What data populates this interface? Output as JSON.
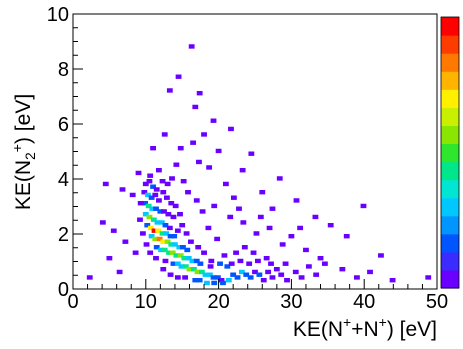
{
  "chart_data": {
    "type": "heatmap",
    "xlabel_parts": {
      "base": "KE(N",
      "sup1": "+",
      "mid": "+N",
      "sup2": "+",
      "end": ") [eV]"
    },
    "ylabel_parts": {
      "base": "KE(N",
      "sub": "2",
      "sup": "+",
      "end": ") [eV]"
    },
    "xlim": [
      0,
      50
    ],
    "ylim": [
      0,
      10
    ],
    "x_ticks": [
      0,
      10,
      20,
      30,
      40,
      50
    ],
    "y_ticks": [
      0,
      2,
      4,
      6,
      8,
      10
    ],
    "bin_size": {
      "x": 0.5,
      "y": 0.1
    },
    "colorbar": [
      "#6a00ff",
      "#3b2bff",
      "#0055ff",
      "#0095ff",
      "#00c8ff",
      "#00e6d2",
      "#00e68a",
      "#2ee62e",
      "#8ae600",
      "#c8f000",
      "#fff000",
      "#ffb400",
      "#ff7800",
      "#ff3c00",
      "#ff0000"
    ],
    "bins": [
      [
        15.9,
        8.8,
        1
      ],
      [
        14.1,
        7.7,
        1
      ],
      [
        12.9,
        7.2,
        1
      ],
      [
        17.0,
        7.1,
        1
      ],
      [
        16.4,
        6.6,
        1
      ],
      [
        18.9,
        6.1,
        1
      ],
      [
        21.3,
        5.8,
        1
      ],
      [
        12.2,
        5.6,
        1
      ],
      [
        17.6,
        5.6,
        1
      ],
      [
        16.1,
        5.3,
        1
      ],
      [
        14.4,
        5.1,
        1
      ],
      [
        10.6,
        5.1,
        1
      ],
      [
        19.6,
        5.0,
        1
      ],
      [
        24.1,
        4.9,
        1
      ],
      [
        16.9,
        4.6,
        1
      ],
      [
        13.8,
        4.5,
        1
      ],
      [
        18.3,
        4.4,
        1
      ],
      [
        11.4,
        4.3,
        1
      ],
      [
        22.9,
        4.3,
        1
      ],
      [
        8.6,
        4.2,
        1
      ],
      [
        28.0,
        4.0,
        1
      ],
      [
        4.1,
        3.8,
        1
      ],
      [
        6.4,
        3.6,
        1
      ],
      [
        7.8,
        3.4,
        1
      ],
      [
        25.6,
        3.5,
        1
      ],
      [
        21.7,
        3.3,
        1
      ],
      [
        30.3,
        3.2,
        1
      ],
      [
        39.5,
        3.0,
        1
      ],
      [
        27.0,
        2.9,
        1
      ],
      [
        32.9,
        2.6,
        1
      ],
      [
        35.0,
        2.3,
        1
      ],
      [
        30.8,
        2.2,
        1
      ],
      [
        37.2,
        1.9,
        1
      ],
      [
        3.7,
        2.4,
        1
      ],
      [
        5.2,
        2.1,
        1
      ],
      [
        6.8,
        1.7,
        1
      ],
      [
        1.9,
        0.4,
        1
      ],
      [
        4.6,
        1.1,
        1
      ],
      [
        6.0,
        0.6,
        1
      ],
      [
        8.2,
        1.3,
        1
      ],
      [
        41.9,
        1.2,
        1
      ],
      [
        40.4,
        0.6,
        1
      ],
      [
        43.5,
        0.3,
        1
      ],
      [
        38.6,
        0.4,
        1
      ],
      [
        34.2,
        0.9,
        1
      ],
      [
        36.6,
        0.7,
        1
      ],
      [
        31.6,
        1.4,
        1
      ],
      [
        33.6,
        1.1,
        1
      ],
      [
        48.4,
        0.4,
        1
      ],
      [
        9.6,
        3.8,
        1
      ],
      [
        10.1,
        3.9,
        1
      ],
      [
        10.6,
        3.7,
        2
      ],
      [
        11.1,
        3.6,
        1
      ],
      [
        9.4,
        3.5,
        1
      ],
      [
        9.9,
        3.4,
        3
      ],
      [
        10.4,
        3.3,
        2
      ],
      [
        10.9,
        3.4,
        1
      ],
      [
        11.4,
        3.2,
        1
      ],
      [
        12.0,
        3.5,
        1
      ],
      [
        12.5,
        3.3,
        1
      ],
      [
        13.1,
        3.1,
        1
      ],
      [
        9.5,
        3.1,
        2
      ],
      [
        10.0,
        3.0,
        4
      ],
      [
        10.5,
        2.9,
        3
      ],
      [
        11.0,
        2.9,
        2
      ],
      [
        11.6,
        2.8,
        2
      ],
      [
        12.1,
        2.8,
        1
      ],
      [
        12.7,
        2.7,
        1
      ],
      [
        9.6,
        2.7,
        3
      ],
      [
        10.1,
        2.6,
        5
      ],
      [
        10.7,
        2.5,
        4
      ],
      [
        11.2,
        2.4,
        3
      ],
      [
        11.8,
        2.4,
        3
      ],
      [
        12.3,
        2.3,
        2
      ],
      [
        12.9,
        2.2,
        1
      ],
      [
        13.4,
        2.6,
        1
      ],
      [
        9.8,
        2.3,
        2
      ],
      [
        10.3,
        2.2,
        6
      ],
      [
        10.8,
        2.1,
        8
      ],
      [
        11.3,
        2.1,
        6
      ],
      [
        11.9,
        2.0,
        4
      ],
      [
        12.4,
        2.0,
        3
      ],
      [
        13.0,
        1.9,
        2
      ],
      [
        13.5,
        1.9,
        2
      ],
      [
        14.0,
        2.1,
        1
      ],
      [
        14.6,
        2.3,
        1
      ],
      [
        10.4,
        1.9,
        3
      ],
      [
        10.9,
        1.8,
        5
      ],
      [
        11.5,
        1.8,
        7
      ],
      [
        12.0,
        1.7,
        6
      ],
      [
        12.6,
        1.7,
        5
      ],
      [
        13.1,
        1.6,
        4
      ],
      [
        13.6,
        1.6,
        3
      ],
      [
        14.2,
        1.5,
        3
      ],
      [
        14.7,
        1.5,
        2
      ],
      [
        15.3,
        1.4,
        2
      ],
      [
        11.1,
        1.5,
        2
      ],
      [
        11.7,
        1.4,
        3
      ],
      [
        12.2,
        1.4,
        4
      ],
      [
        12.8,
        1.3,
        4
      ],
      [
        13.3,
        1.3,
        5
      ],
      [
        13.8,
        1.2,
        4
      ],
      [
        14.4,
        1.2,
        5
      ],
      [
        14.9,
        1.1,
        4
      ],
      [
        15.5,
        1.1,
        3
      ],
      [
        16.0,
        1.0,
        3
      ],
      [
        16.6,
        1.0,
        2
      ],
      [
        17.1,
        0.9,
        2
      ],
      [
        12.3,
        1.0,
        1
      ],
      [
        13.4,
        0.9,
        2
      ],
      [
        14.0,
        0.9,
        3
      ],
      [
        14.5,
        0.8,
        3
      ],
      [
        15.1,
        0.8,
        4
      ],
      [
        15.6,
        0.7,
        5
      ],
      [
        16.2,
        0.7,
        4
      ],
      [
        16.7,
        0.6,
        5
      ],
      [
        17.3,
        0.6,
        4
      ],
      [
        17.8,
        0.5,
        3
      ],
      [
        18.4,
        0.5,
        3
      ],
      [
        18.9,
        0.4,
        2
      ],
      [
        19.5,
        0.4,
        2
      ],
      [
        20.0,
        0.3,
        1
      ],
      [
        15.0,
        0.4,
        1
      ],
      [
        16.4,
        0.3,
        2
      ],
      [
        17.0,
        0.3,
        2
      ],
      [
        18.0,
        0.2,
        3
      ],
      [
        19.0,
        0.2,
        2
      ],
      [
        20.2,
        0.2,
        2
      ],
      [
        21.0,
        0.3,
        3
      ],
      [
        21.6,
        0.5,
        2
      ],
      [
        22.2,
        0.4,
        2
      ],
      [
        22.8,
        0.6,
        3
      ],
      [
        23.4,
        0.5,
        2
      ],
      [
        24.0,
        0.4,
        2
      ],
      [
        24.6,
        0.6,
        1
      ],
      [
        25.2,
        0.5,
        2
      ],
      [
        25.8,
        0.3,
        1
      ],
      [
        26.4,
        0.6,
        1
      ],
      [
        27.0,
        0.4,
        1
      ],
      [
        27.6,
        0.7,
        1
      ],
      [
        28.2,
        0.5,
        1
      ],
      [
        29.0,
        0.3,
        1
      ],
      [
        20.8,
        0.8,
        2
      ],
      [
        21.4,
        0.9,
        1
      ],
      [
        22.6,
        1.0,
        1
      ],
      [
        23.8,
        0.9,
        1
      ],
      [
        25.0,
        1.0,
        1
      ],
      [
        26.2,
        1.1,
        1
      ],
      [
        18.6,
        1.0,
        1
      ],
      [
        19.8,
        0.9,
        2
      ],
      [
        17.6,
        1.3,
        1
      ],
      [
        16.8,
        1.5,
        1
      ],
      [
        15.8,
        1.7,
        1
      ],
      [
        15.2,
        2.0,
        1
      ],
      [
        14.3,
        2.7,
        1
      ],
      [
        13.7,
        3.0,
        1
      ],
      [
        12.6,
        3.8,
        1
      ],
      [
        11.9,
        3.9,
        1
      ],
      [
        10.2,
        4.1,
        1
      ],
      [
        8.9,
        3.1,
        1
      ],
      [
        8.8,
        2.5,
        1
      ],
      [
        9.2,
        2.0,
        1
      ],
      [
        9.7,
        1.6,
        1
      ],
      [
        10.2,
        1.3,
        1
      ],
      [
        11.0,
        1.1,
        1
      ],
      [
        12.0,
        0.7,
        1
      ],
      [
        13.0,
        0.5,
        1
      ],
      [
        14.0,
        0.4,
        1
      ],
      [
        18.5,
        0.8,
        1
      ],
      [
        20.4,
        1.2,
        1
      ],
      [
        22.0,
        1.3,
        1
      ],
      [
        23.2,
        1.5,
        1
      ],
      [
        24.4,
        1.3,
        1
      ],
      [
        26.8,
        0.9,
        1
      ],
      [
        28.8,
        0.9,
        1
      ],
      [
        30.2,
        0.6,
        1
      ],
      [
        31.0,
        0.4,
        1
      ],
      [
        32.0,
        0.8,
        1
      ],
      [
        33.0,
        0.5,
        1
      ],
      [
        28.4,
        1.6,
        1
      ],
      [
        29.6,
        1.9,
        1
      ],
      [
        26.6,
        2.2,
        1
      ],
      [
        24.8,
        2.0,
        1
      ],
      [
        23.0,
        2.4,
        1
      ],
      [
        21.2,
        2.6,
        1
      ],
      [
        19.4,
        1.8,
        1
      ],
      [
        18.2,
        2.2,
        1
      ],
      [
        17.4,
        2.8,
        1
      ],
      [
        16.6,
        3.2,
        1
      ],
      [
        15.4,
        3.5,
        1
      ],
      [
        14.8,
        3.9,
        1
      ],
      [
        13.2,
        4.0,
        1
      ],
      [
        19.0,
        3.0,
        1
      ],
      [
        20.6,
        3.8,
        1
      ],
      [
        22.4,
        2.9,
        1
      ],
      [
        25.4,
        2.6,
        1
      ]
    ]
  }
}
